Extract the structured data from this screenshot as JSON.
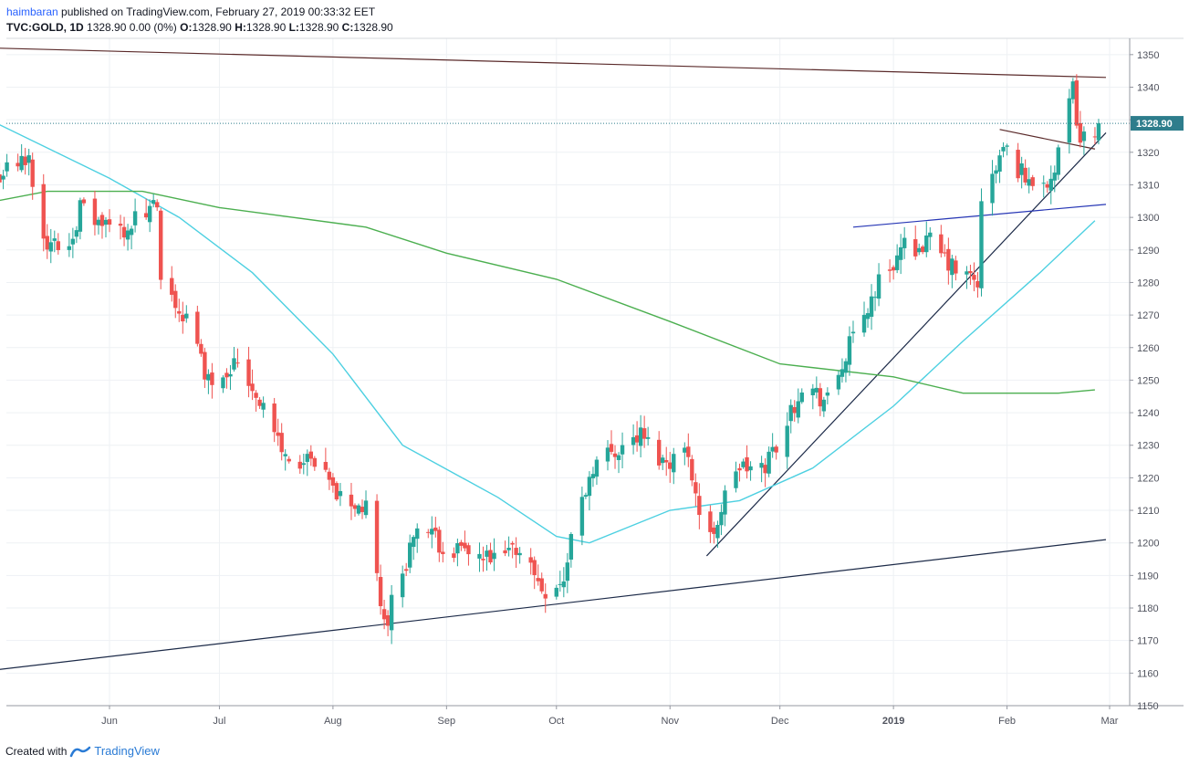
{
  "header": {
    "author": "haimbaran",
    "published_text": "published on TradingView.com, February 27, 2019 00:33:32 EET",
    "symbol": "TVC:GOLD, 1D",
    "price_change": "1328.90 0.00 (0%)",
    "ohlc": [
      {
        "label": "O:",
        "value": "1328.90"
      },
      {
        "label": "H:",
        "value": "1328.90"
      },
      {
        "label": "L:",
        "value": "1328.90"
      },
      {
        "label": "C:",
        "value": "1328.90"
      }
    ]
  },
  "footer": {
    "created_with": "Created with",
    "brand": "TradingView"
  },
  "colors": {
    "up": "#26a69a",
    "down": "#ef5350",
    "ma_fast": "#4dd0e1",
    "ma_slow": "#4caf50",
    "price_tag": "#2e7d8c",
    "grid": "#eef1f4",
    "trendline_dark": "#1c2a48",
    "trendline_blue": "#2636b5",
    "trendline_brown": "#5a2a2a"
  },
  "chart_data": {
    "type": "candlestick",
    "symbol": "TVC:GOLD",
    "interval": "1D",
    "x_tick_labels": [
      "Jun",
      "Jul",
      "Aug",
      "Sep",
      "Oct",
      "Nov",
      "Dec",
      "2019",
      "Feb",
      "Mar"
    ],
    "x_tick_dates": [
      "2018-06-01",
      "2018-07-01",
      "2018-08-01",
      "2018-09-01",
      "2018-10-01",
      "2018-11-01",
      "2018-12-01",
      "2019-01-01",
      "2019-02-01",
      "2019-03-01"
    ],
    "y_axis": {
      "position": "right",
      "range": [
        1150,
        1355
      ],
      "ticks": [
        1150,
        1160,
        1170,
        1180,
        1190,
        1200,
        1210,
        1220,
        1230,
        1240,
        1250,
        1260,
        1270,
        1280,
        1290,
        1300,
        1310,
        1320,
        1330,
        1340,
        1350
      ]
    },
    "grid": true,
    "current_price": 1328.9,
    "current_price_label": "1328.90",
    "close_path": [
      [
        "2018-05-01",
        1313
      ],
      [
        "2018-05-07",
        1316
      ],
      [
        "2018-05-10",
        1318
      ],
      [
        "2018-05-15",
        1291
      ],
      [
        "2018-05-21",
        1292
      ],
      [
        "2018-05-24",
        1303
      ],
      [
        "2018-05-29",
        1298
      ],
      [
        "2018-06-04",
        1296
      ],
      [
        "2018-06-08",
        1299
      ],
      [
        "2018-06-14",
        1303
      ],
      [
        "2018-06-15",
        1278
      ],
      [
        "2018-06-22",
        1269
      ],
      [
        "2018-06-28",
        1250
      ],
      [
        "2018-07-06",
        1256
      ],
      [
        "2018-07-13",
        1242
      ],
      [
        "2018-07-19",
        1226
      ],
      [
        "2018-07-26",
        1224
      ],
      [
        "2018-08-03",
        1214
      ],
      [
        "2018-08-10",
        1210
      ],
      [
        "2018-08-15",
        1175
      ],
      [
        "2018-08-16",
        1178
      ],
      [
        "2018-08-24",
        1205
      ],
      [
        "2018-08-30",
        1200
      ],
      [
        "2018-09-07",
        1196
      ],
      [
        "2018-09-14",
        1194
      ],
      [
        "2018-09-21",
        1199
      ],
      [
        "2018-09-27",
        1186
      ],
      [
        "2018-10-03",
        1188
      ],
      [
        "2018-10-05",
        1202
      ],
      [
        "2018-10-11",
        1224
      ],
      [
        "2018-10-16",
        1228
      ],
      [
        "2018-10-24",
        1233
      ],
      [
        "2018-10-30",
        1225
      ],
      [
        "2018-11-06",
        1228
      ],
      [
        "2018-11-09",
        1209
      ],
      [
        "2018-11-12",
        1201
      ],
      [
        "2018-11-19",
        1223
      ],
      [
        "2018-11-26",
        1222
      ],
      [
        "2018-12-03",
        1237
      ],
      [
        "2018-12-07",
        1249
      ],
      [
        "2018-12-14",
        1243
      ],
      [
        "2018-12-20",
        1260
      ],
      [
        "2018-12-28",
        1280
      ],
      [
        "2019-01-04",
        1291
      ],
      [
        "2019-01-11",
        1292
      ],
      [
        "2019-01-18",
        1283
      ],
      [
        "2019-01-24",
        1280
      ],
      [
        "2019-01-25",
        1303
      ],
      [
        "2019-01-31",
        1321
      ],
      [
        "2019-02-07",
        1311
      ],
      [
        "2019-02-14",
        1313
      ],
      [
        "2019-02-19",
        1339
      ],
      [
        "2019-02-21",
        1323
      ],
      [
        "2019-02-26",
        1328.9
      ]
    ],
    "series": [
      {
        "name": "",
        "style": "line",
        "color": "#4dd0e1",
        "points": [
          [
            "2018-05-01",
            1329
          ],
          [
            "2018-06-01",
            1312
          ],
          [
            "2018-06-20",
            1300
          ],
          [
            "2018-07-10",
            1283
          ],
          [
            "2018-08-01",
            1258
          ],
          [
            "2018-08-20",
            1230
          ],
          [
            "2018-09-15",
            1214
          ],
          [
            "2018-10-01",
            1202
          ],
          [
            "2018-10-10",
            1200
          ],
          [
            "2018-11-01",
            1210
          ],
          [
            "2018-11-20",
            1213
          ],
          [
            "2018-12-10",
            1223
          ],
          [
            "2019-01-01",
            1242
          ],
          [
            "2019-01-20",
            1262
          ],
          [
            "2019-02-10",
            1283
          ],
          [
            "2019-02-25",
            1299
          ]
        ]
      },
      {
        "name": "",
        "style": "line",
        "color": "#4caf50",
        "points": [
          [
            "2018-05-01",
            1305
          ],
          [
            "2018-05-15",
            1308
          ],
          [
            "2018-06-10",
            1308
          ],
          [
            "2018-07-01",
            1303
          ],
          [
            "2018-08-10",
            1297
          ],
          [
            "2018-09-01",
            1289
          ],
          [
            "2018-10-01",
            1281
          ],
          [
            "2018-11-01",
            1268
          ],
          [
            "2018-12-01",
            1255
          ],
          [
            "2019-01-01",
            1251
          ],
          [
            "2019-01-20",
            1246
          ],
          [
            "2019-02-15",
            1246
          ],
          [
            "2019-02-25",
            1247
          ]
        ]
      }
    ],
    "trendlines": [
      {
        "name": "",
        "color": "#1c2a48",
        "from": [
          "2018-05-01",
          1161
        ],
        "to": [
          "2019-02-28",
          1201
        ]
      },
      {
        "name": "",
        "color": "#5a2a2a",
        "from": [
          "2018-05-01",
          1352
        ],
        "to": [
          "2019-02-28",
          1343
        ]
      },
      {
        "name": "",
        "color": "#1c2a48",
        "from": [
          "2018-11-11",
          1196
        ],
        "to": [
          "2019-02-28",
          1326
        ]
      },
      {
        "name": "",
        "color": "#2636b5",
        "from": [
          "2018-12-21",
          1297
        ],
        "to": [
          "2019-02-28",
          1304
        ]
      },
      {
        "name": "",
        "color": "#5a2a2a",
        "from": [
          "2019-01-30",
          1327
        ],
        "to": [
          "2019-02-25",
          1321
        ]
      }
    ],
    "title": "",
    "xlabel": "",
    "ylabel": ""
  }
}
